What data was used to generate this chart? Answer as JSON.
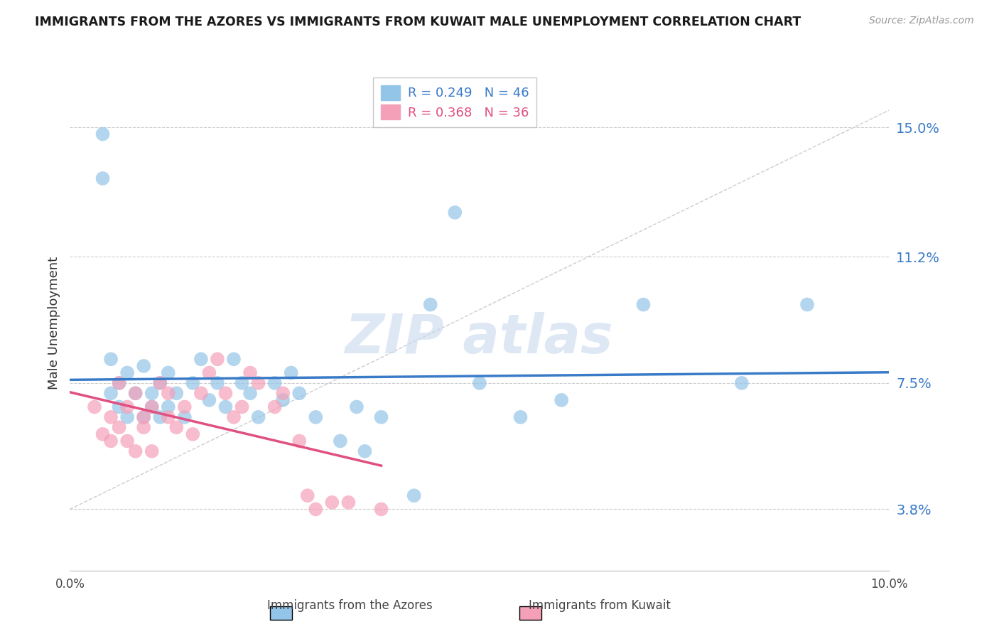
{
  "title": "IMMIGRANTS FROM THE AZORES VS IMMIGRANTS FROM KUWAIT MALE UNEMPLOYMENT CORRELATION CHART",
  "source": "Source: ZipAtlas.com",
  "ylabel": "Male Unemployment",
  "xlim": [
    0.0,
    0.1
  ],
  "ylim": [
    0.02,
    0.165
  ],
  "yticks": [
    0.038,
    0.075,
    0.112,
    0.15
  ],
  "ytick_labels": [
    "3.8%",
    "7.5%",
    "11.2%",
    "15.0%"
  ],
  "xticks": [
    0.0,
    0.02,
    0.04,
    0.06,
    0.08,
    0.1
  ],
  "xtick_labels": [
    "0.0%",
    "",
    "",
    "",
    "",
    "10.0%"
  ],
  "legend_azores": "Immigrants from the Azores",
  "legend_kuwait": "Immigrants from Kuwait",
  "R_azores": 0.249,
  "N_azores": 46,
  "R_kuwait": 0.368,
  "N_kuwait": 36,
  "color_azores": "#93c5e8",
  "color_kuwait": "#f4a0b8",
  "line_color_azores": "#3a7bc8",
  "line_color_kuwait": "#e05080",
  "ref_line_color": "#cccccc",
  "background_color": "#ffffff",
  "grid_color": "#cccccc",
  "azores_x": [
    0.004,
    0.004,
    0.005,
    0.005,
    0.006,
    0.006,
    0.007,
    0.007,
    0.008,
    0.009,
    0.009,
    0.01,
    0.01,
    0.011,
    0.011,
    0.012,
    0.012,
    0.013,
    0.014,
    0.015,
    0.016,
    0.017,
    0.018,
    0.019,
    0.02,
    0.021,
    0.022,
    0.023,
    0.025,
    0.026,
    0.027,
    0.028,
    0.03,
    0.033,
    0.035,
    0.036,
    0.038,
    0.042,
    0.044,
    0.047,
    0.05,
    0.055,
    0.06,
    0.07,
    0.082,
    0.09
  ],
  "azores_y": [
    0.135,
    0.148,
    0.072,
    0.082,
    0.068,
    0.075,
    0.065,
    0.078,
    0.072,
    0.065,
    0.08,
    0.068,
    0.072,
    0.065,
    0.075,
    0.068,
    0.078,
    0.072,
    0.065,
    0.075,
    0.082,
    0.07,
    0.075,
    0.068,
    0.082,
    0.075,
    0.072,
    0.065,
    0.075,
    0.07,
    0.078,
    0.072,
    0.065,
    0.058,
    0.068,
    0.055,
    0.065,
    0.042,
    0.098,
    0.125,
    0.075,
    0.065,
    0.07,
    0.098,
    0.075,
    0.098
  ],
  "kuwait_x": [
    0.003,
    0.004,
    0.005,
    0.005,
    0.006,
    0.006,
    0.007,
    0.007,
    0.008,
    0.008,
    0.009,
    0.009,
    0.01,
    0.01,
    0.011,
    0.012,
    0.012,
    0.013,
    0.014,
    0.015,
    0.016,
    0.017,
    0.018,
    0.019,
    0.02,
    0.021,
    0.022,
    0.023,
    0.025,
    0.026,
    0.028,
    0.029,
    0.03,
    0.032,
    0.034,
    0.038
  ],
  "kuwait_y": [
    0.068,
    0.06,
    0.058,
    0.065,
    0.075,
    0.062,
    0.068,
    0.058,
    0.055,
    0.072,
    0.062,
    0.065,
    0.055,
    0.068,
    0.075,
    0.065,
    0.072,
    0.062,
    0.068,
    0.06,
    0.072,
    0.078,
    0.082,
    0.072,
    0.065,
    0.068,
    0.078,
    0.075,
    0.068,
    0.072,
    0.058,
    0.042,
    0.038,
    0.04,
    0.04,
    0.038
  ],
  "ref_line_x": [
    0.0,
    0.1
  ],
  "ref_line_y": [
    0.038,
    0.155
  ]
}
